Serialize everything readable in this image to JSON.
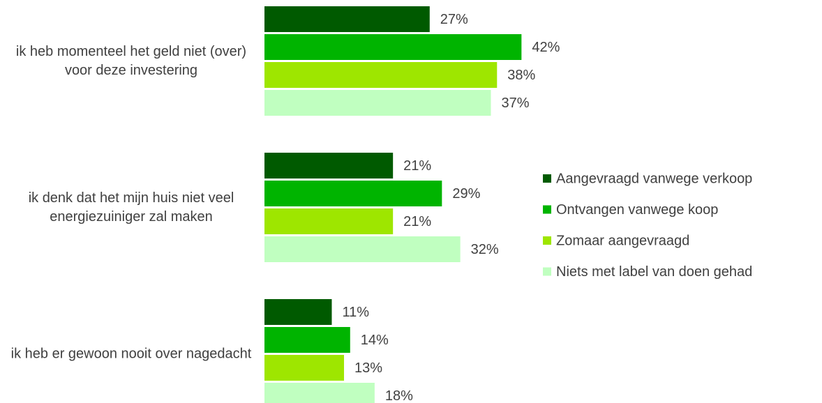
{
  "chart_data": {
    "type": "bar",
    "orientation": "horizontal",
    "categories": [
      "ik heb momenteel het geld niet (over) voor deze investering",
      "ik denk dat het mijn huis niet veel energiezuiniger zal maken",
      "ik heb er gewoon nooit over nagedacht"
    ],
    "series": [
      {
        "name": "Aangevraagd vanwege verkoop",
        "color": "#005a00",
        "values": [
          27,
          21,
          11
        ],
        "value_labels": [
          "27%",
          "21%",
          "11%"
        ]
      },
      {
        "name": "Ontvangen vanwege koop",
        "color": "#00b400",
        "values": [
          42,
          29,
          14
        ],
        "value_labels": [
          "42%",
          "29%",
          "14%"
        ]
      },
      {
        "name": "Zomaar aangevraagd",
        "color": "#9ee600",
        "values": [
          38,
          21,
          13
        ],
        "value_labels": [
          "38%",
          "21%",
          "13%"
        ]
      },
      {
        "name": "Niets met label van doen gehad",
        "color": "#c0ffc0",
        "values": [
          37,
          32,
          18
        ],
        "value_labels": [
          "37%",
          "32%",
          "18%"
        ]
      }
    ],
    "legend": "right"
  }
}
